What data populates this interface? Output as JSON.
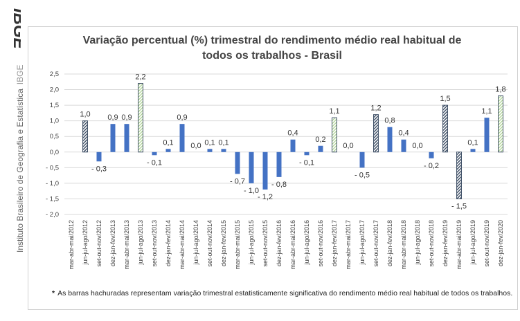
{
  "side": {
    "logo_text": "IBGE",
    "institute": "Instituto Brasileiro de Geografia e Estatística",
    "acronym": "IBGE"
  },
  "footnote": {
    "marker": "*",
    "text": "As barras hachuradas representam variação trimestral estatisticamente significativa do rendimento médio real habitual de todos os trabalhos."
  },
  "chart_data": {
    "type": "bar",
    "title": "Variação percentual (%) trimestral do rendimento médio real habitual de todos os trabalhos - Brasil",
    "title_lines": [
      "Variação percentual (%) trimestral do rendimento médio real habitual de",
      "todos os trabalhos - Brasil"
    ],
    "xlabel": "",
    "ylabel": "",
    "ylim": [
      -2.0,
      2.5
    ],
    "yticks": [
      "2,5",
      "2,0",
      "1,5",
      "1,0",
      "0,5",
      "0,0",
      "- 0,5",
      "- 1,0",
      "- 1,5",
      "- 2,0"
    ],
    "grid": true,
    "categories": [
      "mar-abr-mai/2012",
      "jun-jul-ago/2012",
      "set-out-nov/2012",
      "dez-jan-fev/2013",
      "mar-abr-mai/2013",
      "jun-jul-ago/2013",
      "set-out-nov/2013",
      "dez-jan-fev/2014",
      "mar-abr-mai/2014",
      "jun-jul-ago/2014",
      "set-out-nov/2014",
      "dez-jan-fev/2015",
      "mar-abr-mai/2015",
      "jun-jul-ago/2015",
      "set-out-nov/2015",
      "dez-jan-fev/2016",
      "mar-abr-mai/2016",
      "jun-jul-ago/2016",
      "set-out-nov/2016",
      "dez-jan-fev/2017",
      "mar-abr-mai/2017",
      "jun-jul-ago/2017",
      "set-out-nov/2017",
      "dez-jan-fev/2018",
      "mar-abr-mai/2018",
      "jun-jul-ago/2018",
      "set-out-nov/2018",
      "dez-jan-fev/2019",
      "mar-abr-mai/2019",
      "jun-jul-ago/2019",
      "set-out-nov/2019",
      "dez-jan-fev/2020"
    ],
    "values": [
      null,
      1.0,
      -0.3,
      0.9,
      0.9,
      2.2,
      -0.1,
      0.1,
      0.9,
      0.0,
      0.1,
      0.1,
      -0.7,
      -1.0,
      -1.2,
      -0.8,
      0.4,
      -0.1,
      0.2,
      1.1,
      0.0,
      -0.5,
      1.2,
      0.8,
      0.4,
      0.0,
      -0.2,
      1.5,
      -1.5,
      0.1,
      1.1,
      1.8
    ],
    "labels": [
      "",
      "1,0",
      "- 0,3",
      "0,9",
      "0,9",
      "2,2",
      "- 0,1",
      "0,1",
      "0,9",
      "0,0",
      "0,1",
      "0,1",
      "- 0,7",
      "- 1,0",
      "- 1,2",
      "- 0,8",
      "0,4",
      "- 0,1",
      "0,2",
      "1,1",
      "0,0",
      "- 0,5",
      "1,2",
      "0,8",
      "0,4",
      "0,0",
      "- 0,2",
      "1,5",
      "- 1,5",
      "0,1",
      "1,1",
      "1,8"
    ],
    "styles": [
      "",
      "hatch",
      "solid",
      "solid",
      "solid",
      "green",
      "solid",
      "solid",
      "solid",
      "solid",
      "solid",
      "solid",
      "solid",
      "solid",
      "solid",
      "solid",
      "solid",
      "solid",
      "solid",
      "green",
      "solid",
      "solid",
      "hatch",
      "solid",
      "solid",
      "solid",
      "solid",
      "hatch",
      "hatch",
      "solid",
      "solid",
      "green"
    ],
    "colors": {
      "solid": "#4472C4",
      "hatch": "#44546A",
      "green": "#A9D18E",
      "grid": "#D9D9D9",
      "text": "#404040"
    }
  }
}
